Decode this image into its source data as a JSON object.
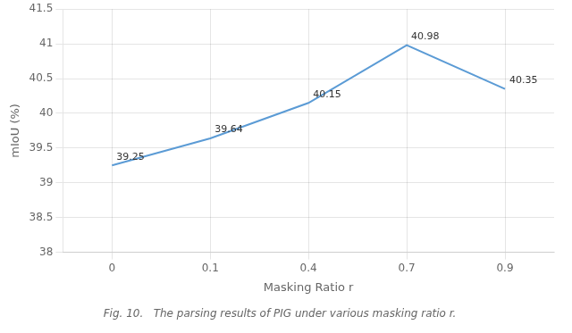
{
  "chart_data": {
    "type": "line",
    "title": "Fig. 10.   The parsing results of PIG under various masking ratio r.",
    "categories": [
      "0",
      "0.1",
      "0.4",
      "0.7",
      "0.9"
    ],
    "values": [
      39.25,
      39.64,
      40.15,
      40.98,
      40.35
    ],
    "color": "#5b9bd5",
    "xlabel": "Masking Ratio r",
    "ylabel": "mIoU (%)",
    "ylim": [
      38.0,
      41.5
    ],
    "yticks": [
      38,
      38.5,
      39,
      39.5,
      40,
      40.5,
      41,
      41.5
    ],
    "grid": true,
    "data_labels": true
  }
}
